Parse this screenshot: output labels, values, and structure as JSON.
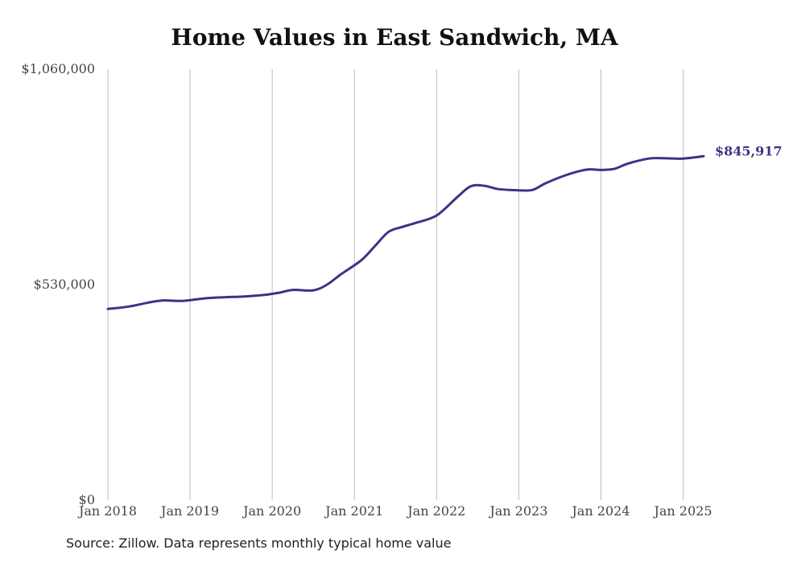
{
  "chart_data": {
    "type": "line",
    "title": "Home Values in East Sandwich, MA",
    "source": "Source: Zillow. Data represents monthly typical home value",
    "ylim": [
      0,
      1060000
    ],
    "y_ticks": [
      {
        "value": 0,
        "label": "$0"
      },
      {
        "value": 530000,
        "label": "$530,000"
      },
      {
        "value": 1060000,
        "label": "$1,060,000"
      }
    ],
    "x_ticks": [
      {
        "date": "2018-01",
        "label": "Jan 2018"
      },
      {
        "date": "2019-01",
        "label": "Jan 2019"
      },
      {
        "date": "2020-01",
        "label": "Jan 2020"
      },
      {
        "date": "2021-01",
        "label": "Jan 2021"
      },
      {
        "date": "2022-01",
        "label": "Jan 2022"
      },
      {
        "date": "2023-01",
        "label": "Jan 2023"
      },
      {
        "date": "2024-01",
        "label": "Jan 2024"
      },
      {
        "date": "2025-01",
        "label": "Jan 2025"
      }
    ],
    "xlim": [
      "2018-01",
      "2025-04"
    ],
    "grid": "vertical",
    "color": "#3b3486",
    "end_label": "$845,917",
    "series": [
      {
        "values": [
          {
            "x": "2018-01",
            "y": 470000
          },
          {
            "x": "2018-04",
            "y": 476000
          },
          {
            "x": "2018-07",
            "y": 486000
          },
          {
            "x": "2018-09",
            "y": 491000
          },
          {
            "x": "2018-12",
            "y": 490000
          },
          {
            "x": "2019-03",
            "y": 496000
          },
          {
            "x": "2019-06",
            "y": 499000
          },
          {
            "x": "2019-09",
            "y": 501000
          },
          {
            "x": "2019-12",
            "y": 505000
          },
          {
            "x": "2020-02",
            "y": 510000
          },
          {
            "x": "2020-04",
            "y": 517000
          },
          {
            "x": "2020-07",
            "y": 516000
          },
          {
            "x": "2020-09",
            "y": 530000
          },
          {
            "x": "2020-11",
            "y": 555000
          },
          {
            "x": "2021-02",
            "y": 590000
          },
          {
            "x": "2021-04",
            "y": 625000
          },
          {
            "x": "2021-06",
            "y": 660000
          },
          {
            "x": "2021-08",
            "y": 672000
          },
          {
            "x": "2021-10",
            "y": 682000
          },
          {
            "x": "2022-01",
            "y": 700000
          },
          {
            "x": "2022-04",
            "y": 745000
          },
          {
            "x": "2022-06",
            "y": 772000
          },
          {
            "x": "2022-08",
            "y": 773000
          },
          {
            "x": "2022-10",
            "y": 765000
          },
          {
            "x": "2023-01",
            "y": 762000
          },
          {
            "x": "2023-03",
            "y": 763000
          },
          {
            "x": "2023-05",
            "y": 780000
          },
          {
            "x": "2023-08",
            "y": 800000
          },
          {
            "x": "2023-11",
            "y": 813000
          },
          {
            "x": "2024-01",
            "y": 812000
          },
          {
            "x": "2024-03",
            "y": 815000
          },
          {
            "x": "2024-05",
            "y": 828000
          },
          {
            "x": "2024-08",
            "y": 840000
          },
          {
            "x": "2024-10",
            "y": 841000
          },
          {
            "x": "2025-01",
            "y": 840000
          },
          {
            "x": "2025-04",
            "y": 845917
          }
        ]
      }
    ]
  }
}
